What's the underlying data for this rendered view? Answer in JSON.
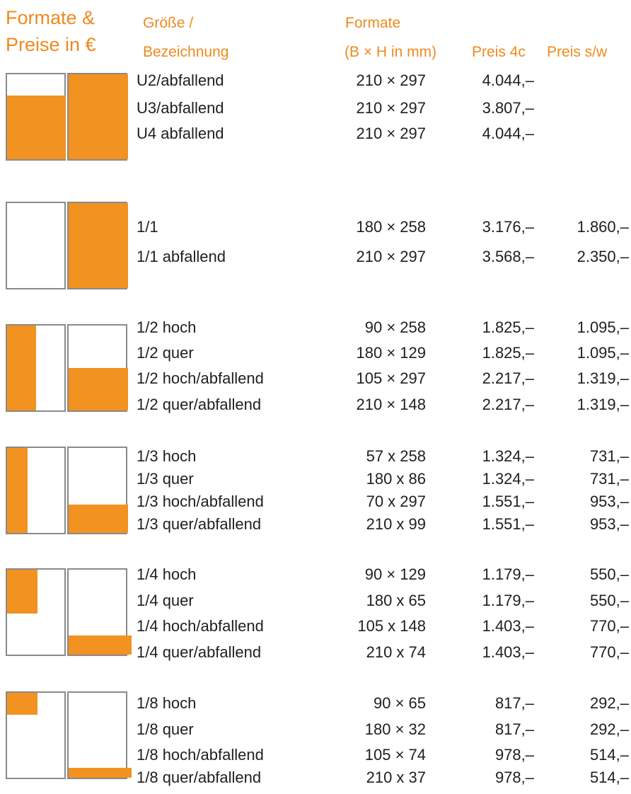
{
  "header": {
    "title_line1": "Formate &",
    "title_line2": "Preise in €",
    "col_size_line1": "Größe /",
    "col_size_line2": "Bezeichnung",
    "col_format_line1": "Formate",
    "col_format_line2": "(B × H in mm)",
    "col_price_color": "Preis 4c",
    "col_price_bw": "Preis s/w"
  },
  "groups": [
    {
      "rows": [
        {
          "name": "U2/abfallend",
          "format": "210 × 297",
          "price_4c": "4.044,–",
          "price_sw": ""
        },
        {
          "name": "U3/abfallend",
          "format": "210 × 297",
          "price_4c": "3.807,–",
          "price_sw": ""
        },
        {
          "name": "U4 abfallend",
          "format": "210 × 297",
          "price_4c": "4.044,–",
          "price_sw": ""
        }
      ]
    },
    {
      "rows": [
        {
          "name": "1/1",
          "format": "180 × 258",
          "price_4c": "3.176,–",
          "price_sw": "1.860,–"
        },
        {
          "name": "1/1 abfallend",
          "format": "210 × 297",
          "price_4c": "3.568,–",
          "price_sw": "2.350,–"
        }
      ]
    },
    {
      "rows": [
        {
          "name": "1/2 hoch",
          "format": "90 × 258",
          "price_4c": "1.825,–",
          "price_sw": "1.095,–"
        },
        {
          "name": "1/2 quer",
          "format": "180 × 129",
          "price_4c": "1.825,–",
          "price_sw": "1.095,–"
        },
        {
          "name": "1/2 hoch/abfallend",
          "format": "105 × 297",
          "price_4c": "2.217,–",
          "price_sw": "1.319,–"
        },
        {
          "name": "1/2 quer/abfallend",
          "format": "210 × 148",
          "price_4c": "2.217,–",
          "price_sw": "1.319,–"
        }
      ]
    },
    {
      "rows": [
        {
          "name": "1/3 hoch",
          "format": "57 x 258",
          "price_4c": "1.324,–",
          "price_sw": "731,–"
        },
        {
          "name": "1/3 quer",
          "format": "180 x 86",
          "price_4c": "1.324,–",
          "price_sw": "731,–"
        },
        {
          "name": "1/3 hoch/abfallend",
          "format": "70 x 297",
          "price_4c": "1.551,–",
          "price_sw": "953,–"
        },
        {
          "name": "1/3 quer/abfallend",
          "format": "210 x 99",
          "price_4c": "1.551,–",
          "price_sw": "953,–"
        }
      ]
    },
    {
      "rows": [
        {
          "name": "1/4 hoch",
          "format": "90 × 129",
          "price_4c": "1.179,–",
          "price_sw": "550,–"
        },
        {
          "name": "1/4 quer",
          "format": "180 x 65",
          "price_4c": "1.179,–",
          "price_sw": "550,–"
        },
        {
          "name": "1/4 hoch/abfallend",
          "format": "105 x 148",
          "price_4c": "1.403,–",
          "price_sw": "770,–"
        },
        {
          "name": "1/4 quer/abfallend",
          "format": "210 x 74",
          "price_4c": "1.403,–",
          "price_sw": "770,–"
        }
      ]
    },
    {
      "rows": [
        {
          "name": "1/8 hoch",
          "format": "90 × 65",
          "price_4c": "817,–",
          "price_sw": "292,–"
        },
        {
          "name": "1/8 quer",
          "format": "180 × 32",
          "price_4c": "817,–",
          "price_sw": "292,–"
        },
        {
          "name": "1/8 hoch/abfallend",
          "format": "105 × 74",
          "price_4c": "978,–",
          "price_sw": "514,–"
        },
        {
          "name": "1/8 quer/abfallend",
          "format": "210 x 37",
          "price_4c": "978,–",
          "price_sw": "514,–"
        }
      ]
    }
  ],
  "colors": {
    "accent": "#f29221",
    "header_text": "#ee8a1f",
    "frame": "#8a8a8a"
  }
}
